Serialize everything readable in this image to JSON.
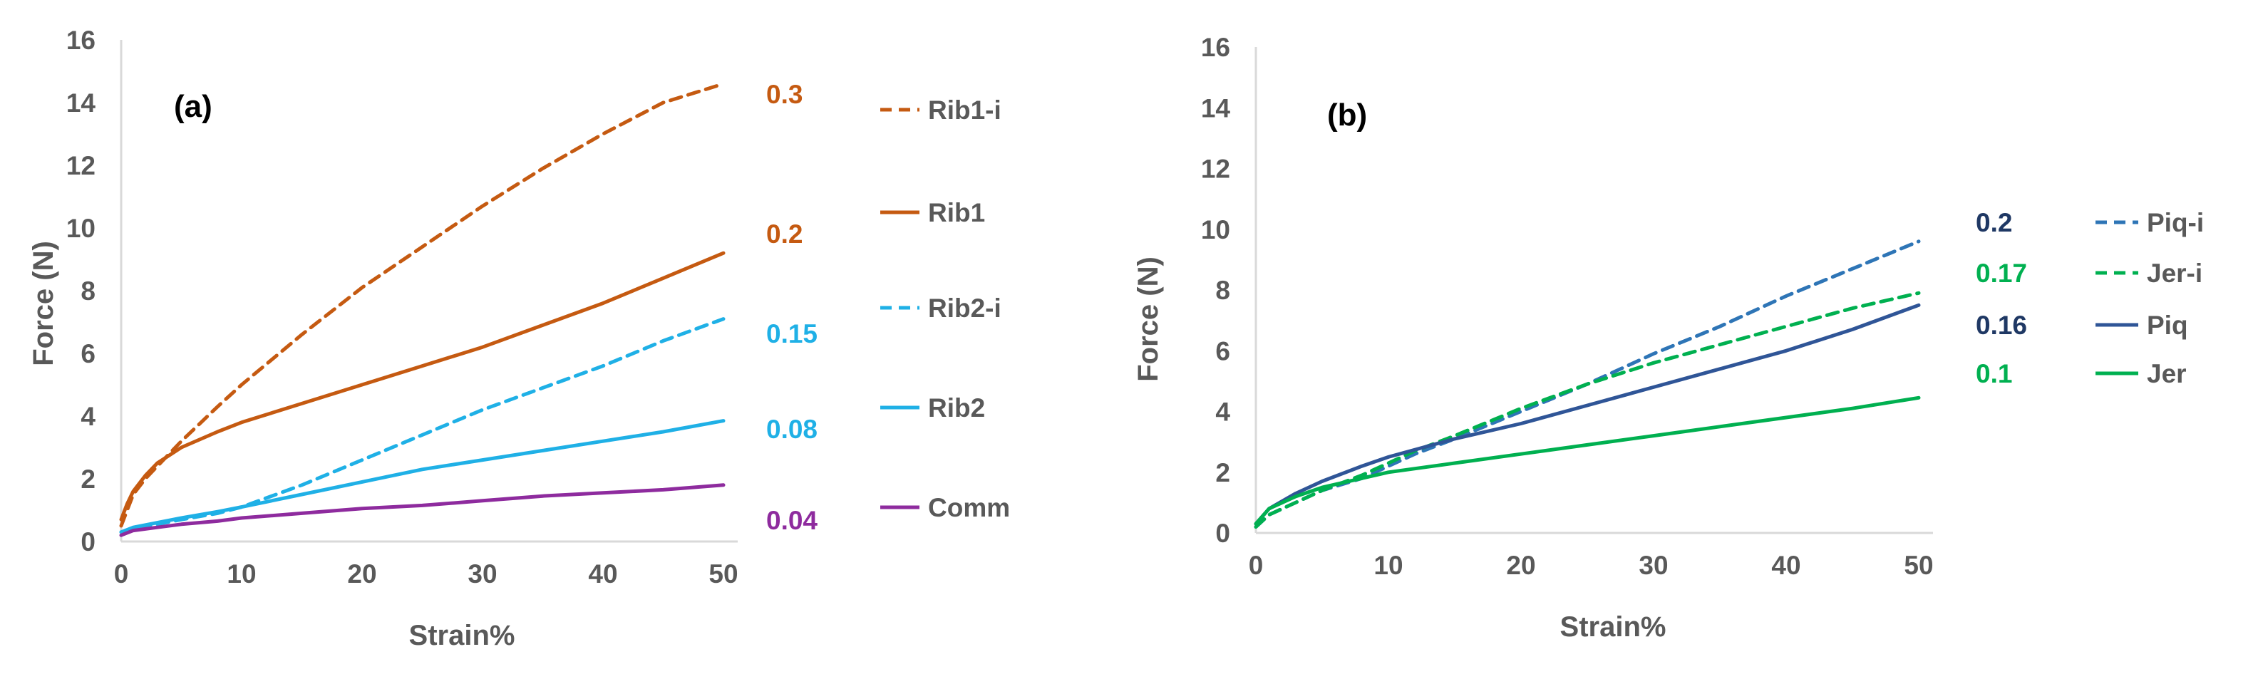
{
  "chart_data": [
    {
      "type": "line",
      "panel_label": "(a)",
      "xlabel": "Strain%",
      "ylabel": "Force (N)",
      "xlim": [
        0,
        50
      ],
      "ylim": [
        0,
        16
      ],
      "xticks": [
        "0",
        "10",
        "20",
        "30",
        "40",
        "50"
      ],
      "yticks": [
        "0",
        "2",
        "4",
        "6",
        "8",
        "10",
        "12",
        "14",
        "16"
      ],
      "grid": false,
      "legend_position": "right",
      "series": [
        {
          "name": "Rib1-i",
          "color": "#C55A11",
          "dashed": true,
          "end_label": "0.3",
          "x": [
            0,
            0.5,
            1,
            2,
            3,
            5,
            8,
            10,
            15,
            20,
            25,
            30,
            35,
            40,
            45,
            50
          ],
          "y": [
            0.5,
            1.0,
            1.5,
            2.0,
            2.4,
            3.2,
            4.3,
            5.0,
            6.6,
            8.1,
            9.4,
            10.7,
            11.9,
            13.0,
            14.0,
            14.6
          ]
        },
        {
          "name": "Rib1",
          "color": "#C55A11",
          "dashed": false,
          "end_label": "0.2",
          "x": [
            0,
            0.5,
            1,
            2,
            3,
            5,
            8,
            10,
            15,
            20,
            25,
            30,
            35,
            40,
            45,
            50
          ],
          "y": [
            0.7,
            1.2,
            1.6,
            2.1,
            2.5,
            3.0,
            3.5,
            3.8,
            4.4,
            5.0,
            5.6,
            6.2,
            6.9,
            7.6,
            8.4,
            9.2
          ]
        },
        {
          "name": "Rib2-i",
          "color": "#1FB0E6",
          "dashed": true,
          "end_label": "0.15",
          "x": [
            0,
            1,
            3,
            5,
            8,
            10,
            15,
            20,
            25,
            30,
            35,
            40,
            45,
            50
          ],
          "y": [
            0.3,
            0.4,
            0.55,
            0.7,
            0.9,
            1.1,
            1.8,
            2.6,
            3.4,
            4.2,
            4.9,
            5.6,
            6.4,
            7.1
          ]
        },
        {
          "name": "Rib2",
          "color": "#1FB0E6",
          "dashed": false,
          "end_label": "0.08",
          "x": [
            0,
            1,
            3,
            5,
            8,
            10,
            15,
            20,
            25,
            30,
            35,
            40,
            45,
            50
          ],
          "y": [
            0.3,
            0.45,
            0.6,
            0.75,
            0.95,
            1.1,
            1.5,
            1.9,
            2.3,
            2.6,
            2.9,
            3.2,
            3.5,
            3.85
          ]
        },
        {
          "name": "Comm",
          "color": "#8E2B9E",
          "dashed": false,
          "end_label": "0.04",
          "x": [
            0,
            1,
            3,
            5,
            8,
            10,
            15,
            20,
            25,
            30,
            35,
            40,
            45,
            50
          ],
          "y": [
            0.2,
            0.35,
            0.45,
            0.55,
            0.65,
            0.75,
            0.9,
            1.05,
            1.15,
            1.3,
            1.45,
            1.55,
            1.65,
            1.8
          ]
        }
      ]
    },
    {
      "type": "line",
      "panel_label": "(b)",
      "xlabel": "Strain%",
      "ylabel": "Force (N)",
      "xlim": [
        0,
        50
      ],
      "ylim": [
        0,
        16
      ],
      "xticks": [
        "0",
        "10",
        "20",
        "30",
        "40",
        "50"
      ],
      "yticks": [
        "0",
        "2",
        "4",
        "6",
        "8",
        "10",
        "12",
        "14",
        "16"
      ],
      "grid": false,
      "legend_position": "right",
      "series": [
        {
          "name": "Piq-i",
          "color": "#2E75B6",
          "dashed": true,
          "end_label": "0.2",
          "label_color": "#1F3864",
          "x": [
            0,
            1,
            3,
            5,
            8,
            10,
            12,
            15,
            20,
            25,
            30,
            35,
            40,
            45,
            50
          ],
          "y": [
            0.2,
            0.6,
            1.0,
            1.4,
            1.8,
            2.2,
            2.6,
            3.1,
            4.0,
            4.9,
            5.9,
            6.8,
            7.8,
            8.7,
            9.6
          ]
        },
        {
          "name": "Jer-i",
          "color": "#00B050",
          "dashed": true,
          "end_label": "0.17",
          "label_color": "#00B050",
          "x": [
            0,
            1,
            3,
            5,
            8,
            10,
            12,
            15,
            20,
            25,
            30,
            35,
            40,
            45,
            50
          ],
          "y": [
            0.2,
            0.6,
            1.0,
            1.4,
            1.9,
            2.3,
            2.7,
            3.2,
            4.1,
            4.9,
            5.6,
            6.2,
            6.8,
            7.4,
            7.9
          ]
        },
        {
          "name": "Piq",
          "color": "#2F5597",
          "dashed": false,
          "end_label": "0.16",
          "label_color": "#1F3864",
          "x": [
            0,
            1,
            3,
            5,
            8,
            10,
            15,
            20,
            25,
            30,
            35,
            40,
            45,
            50
          ],
          "y": [
            0.3,
            0.8,
            1.3,
            1.7,
            2.2,
            2.5,
            3.1,
            3.6,
            4.2,
            4.8,
            5.4,
            6.0,
            6.7,
            7.5
          ]
        },
        {
          "name": "Jer",
          "color": "#00B050",
          "dashed": false,
          "end_label": "0.1",
          "label_color": "#00B050",
          "x": [
            0,
            1,
            3,
            5,
            8,
            10,
            15,
            20,
            25,
            30,
            35,
            40,
            45,
            50
          ],
          "y": [
            0.3,
            0.8,
            1.2,
            1.5,
            1.8,
            2.0,
            2.3,
            2.6,
            2.9,
            3.2,
            3.5,
            3.8,
            4.1,
            4.45
          ]
        }
      ]
    }
  ]
}
